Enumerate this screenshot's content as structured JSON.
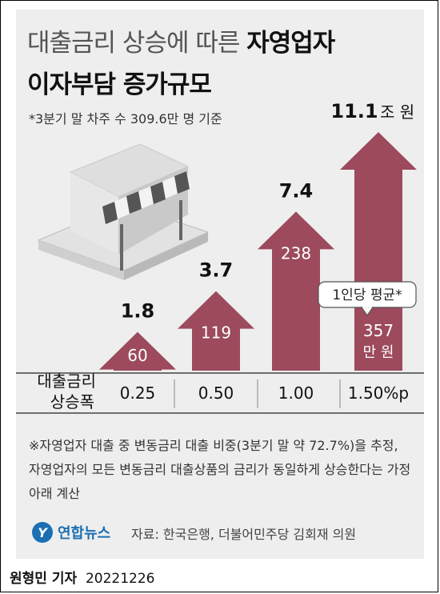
{
  "title": {
    "line1_normal": "대출금리 상승에 따른 ",
    "line1_bold": "자영업자",
    "line2": "이자부담 증가규모"
  },
  "subtitle": "*3분기 말 차주 수 309.6만 명 기준",
  "row_label_line1": "대출금리",
  "row_label_line2": "상승폭",
  "per_person_label": "1인당 평균*",
  "per_person_unit": "만 원",
  "chart_data": {
    "type": "bar",
    "categories": [
      "0.25",
      "0.50",
      "1.00",
      "1.50%p"
    ],
    "series": [
      {
        "values": [
          1.8,
          3.7,
          7.4,
          11.1
        ]
      },
      {
        "values": [
          60,
          119,
          238,
          357
        ]
      }
    ],
    "value_labels": [
      "1.8",
      "3.7",
      "7.4",
      "11.1"
    ],
    "per_person_labels": [
      "60",
      "119",
      "238",
      "357"
    ],
    "last_value_unit": "조 원",
    "bar_color": "#9c4a5c"
  },
  "footnote": "※자영업자 대출 중 변동금리 대출 비중(3분기 말 약 72.7%)을 추정, 자영업자의 모든 변동금리 대출상품의 금리가 동일하게 상승한다는 가정 아래 계산",
  "brand_mark": "Y",
  "brand_name": "연합뉴스",
  "source": "자료: 한국은행, 더불어민주당 김회재 의원",
  "reporter_name": "원형민 기자",
  "date": "20221226"
}
